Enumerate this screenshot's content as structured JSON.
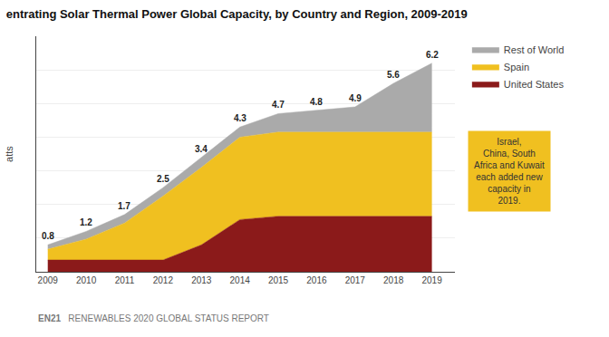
{
  "chart_data": {
    "type": "area",
    "stacked": true,
    "title": "entrating Solar Thermal Power Global Capacity, by Country and Region, 2009-2019",
    "ylabel": "atts",
    "x": [
      2009,
      2010,
      2011,
      2012,
      2013,
      2014,
      2015,
      2016,
      2017,
      2018,
      2019
    ],
    "series": [
      {
        "name": "United States",
        "color": "#8B1A1A",
        "values": [
          0.35,
          0.35,
          0.35,
          0.35,
          0.8,
          1.55,
          1.65,
          1.65,
          1.65,
          1.65,
          1.65
        ]
      },
      {
        "name": "Spain",
        "color": "#F0C020",
        "values": [
          0.32,
          0.62,
          1.1,
          1.9,
          2.3,
          2.45,
          2.5,
          2.5,
          2.5,
          2.5,
          2.5
        ]
      },
      {
        "name": "Rest of World",
        "color": "#AAAAAA",
        "values": [
          0.13,
          0.23,
          0.25,
          0.25,
          0.3,
          0.3,
          0.55,
          0.65,
          0.75,
          1.45,
          2.05
        ]
      }
    ],
    "total_values": [
      0.8,
      1.2,
      1.7,
      2.5,
      3.4,
      4.3,
      4.7,
      4.8,
      4.9,
      5.6,
      6.2
    ],
    "xlim": [
      2008.7,
      2019.6
    ],
    "xticks": [
      2009,
      2010,
      2011,
      2012,
      2013,
      2014,
      2015,
      2016,
      2017,
      2018,
      2019
    ],
    "ylim": [
      0,
      7
    ],
    "yticks": [
      1,
      2,
      3,
      4,
      5,
      6,
      7
    ],
    "tick_labels": "x",
    "grid": true,
    "legend": "right",
    "annotation": "Israel,\nChina, South\nAfrica and Kuwait\neach added new\ncapacity in\n2019.",
    "annotation_color": "#F0C020",
    "footer": [
      "EN21",
      "RENEWABLES 2020 GLOBAL STATUS REPORT"
    ]
  }
}
